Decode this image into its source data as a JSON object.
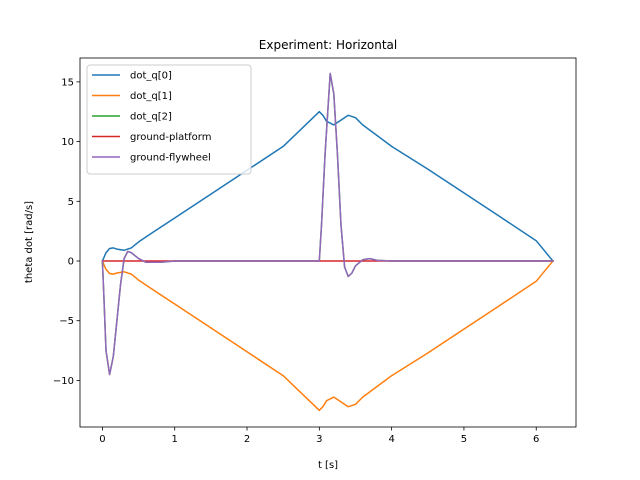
{
  "chart_data": {
    "type": "line",
    "title": "Experiment: Horizontal",
    "xlabel": "t [s]",
    "ylabel": "theta dot [rad/s]",
    "xlim": [
      -0.31,
      6.55
    ],
    "ylim": [
      -13.9,
      17.0
    ],
    "x_ticks": [
      0,
      1,
      2,
      3,
      4,
      5,
      6
    ],
    "y_ticks": [
      -10,
      -5,
      0,
      5,
      10,
      15
    ],
    "grid": false,
    "legend_position": "top-left",
    "series": [
      {
        "name": "dot_q[0]",
        "color": "#1f77b4",
        "points": [
          [
            0,
            0
          ],
          [
            0.05,
            0.7
          ],
          [
            0.1,
            1.05
          ],
          [
            0.15,
            1.1
          ],
          [
            0.2,
            1.0
          ],
          [
            0.3,
            0.9
          ],
          [
            0.4,
            1.1
          ],
          [
            0.5,
            1.6
          ],
          [
            0.7,
            2.4
          ],
          [
            1.0,
            3.6
          ],
          [
            1.5,
            5.6
          ],
          [
            2.0,
            7.6
          ],
          [
            2.5,
            9.6
          ],
          [
            3.0,
            12.5
          ],
          [
            3.05,
            12.2
          ],
          [
            3.1,
            11.7
          ],
          [
            3.2,
            11.4
          ],
          [
            3.3,
            11.8
          ],
          [
            3.4,
            12.2
          ],
          [
            3.5,
            12.0
          ],
          [
            3.6,
            11.4
          ],
          [
            3.8,
            10.5
          ],
          [
            4.0,
            9.6
          ],
          [
            4.5,
            7.7
          ],
          [
            5.0,
            5.7
          ],
          [
            5.5,
            3.7
          ],
          [
            6.0,
            1.7
          ],
          [
            6.23,
            0
          ]
        ]
      },
      {
        "name": "dot_q[1]",
        "color": "#ff7f0e",
        "points": [
          [
            0,
            0
          ],
          [
            0.05,
            -0.7
          ],
          [
            0.1,
            -1.05
          ],
          [
            0.15,
            -1.1
          ],
          [
            0.2,
            -1.0
          ],
          [
            0.3,
            -0.9
          ],
          [
            0.4,
            -1.1
          ],
          [
            0.5,
            -1.6
          ],
          [
            0.7,
            -2.4
          ],
          [
            1.0,
            -3.6
          ],
          [
            1.5,
            -5.6
          ],
          [
            2.0,
            -7.6
          ],
          [
            2.5,
            -9.6
          ],
          [
            3.0,
            -12.5
          ],
          [
            3.05,
            -12.2
          ],
          [
            3.1,
            -11.7
          ],
          [
            3.2,
            -11.4
          ],
          [
            3.3,
            -11.8
          ],
          [
            3.4,
            -12.2
          ],
          [
            3.5,
            -12.0
          ],
          [
            3.6,
            -11.4
          ],
          [
            3.8,
            -10.5
          ],
          [
            4.0,
            -9.6
          ],
          [
            4.5,
            -7.7
          ],
          [
            5.0,
            -5.7
          ],
          [
            5.5,
            -3.7
          ],
          [
            6.0,
            -1.7
          ],
          [
            6.23,
            0
          ]
        ]
      },
      {
        "name": "dot_q[2]",
        "color": "#2ca02c",
        "points": [
          [
            0,
            0
          ],
          [
            0.02,
            -3.0
          ],
          [
            0.05,
            -7.5
          ],
          [
            0.1,
            -9.5
          ],
          [
            0.15,
            -8.0
          ],
          [
            0.2,
            -5.0
          ],
          [
            0.25,
            -2.0
          ],
          [
            0.3,
            0.2
          ],
          [
            0.35,
            0.8
          ],
          [
            0.4,
            0.7
          ],
          [
            0.5,
            0.2
          ],
          [
            0.6,
            -0.1
          ],
          [
            0.8,
            -0.1
          ],
          [
            1.0,
            0
          ],
          [
            3.0,
            0
          ],
          [
            3.03,
            3.0
          ],
          [
            3.08,
            9.0
          ],
          [
            3.15,
            15.7
          ],
          [
            3.2,
            14.0
          ],
          [
            3.25,
            9.0
          ],
          [
            3.3,
            3.0
          ],
          [
            3.35,
            -0.5
          ],
          [
            3.4,
            -1.3
          ],
          [
            3.45,
            -1.0
          ],
          [
            3.5,
            -0.4
          ],
          [
            3.6,
            0.1
          ],
          [
            3.7,
            0.2
          ],
          [
            3.8,
            0.05
          ],
          [
            4.0,
            0
          ],
          [
            6.23,
            0
          ]
        ]
      },
      {
        "name": "ground-platform",
        "color": "#d62728",
        "points": [
          [
            0,
            0
          ],
          [
            6.23,
            0
          ]
        ]
      },
      {
        "name": "ground-flywheel",
        "color": "#9467bd",
        "points": [
          [
            0,
            0
          ],
          [
            0.02,
            -3.0
          ],
          [
            0.05,
            -7.5
          ],
          [
            0.1,
            -9.5
          ],
          [
            0.15,
            -8.0
          ],
          [
            0.2,
            -5.0
          ],
          [
            0.25,
            -2.0
          ],
          [
            0.3,
            0.2
          ],
          [
            0.35,
            0.8
          ],
          [
            0.4,
            0.7
          ],
          [
            0.5,
            0.2
          ],
          [
            0.6,
            -0.1
          ],
          [
            0.8,
            -0.1
          ],
          [
            1.0,
            0
          ],
          [
            3.0,
            0
          ],
          [
            3.03,
            3.0
          ],
          [
            3.08,
            9.0
          ],
          [
            3.15,
            15.7
          ],
          [
            3.2,
            14.0
          ],
          [
            3.25,
            9.0
          ],
          [
            3.3,
            3.0
          ],
          [
            3.35,
            -0.5
          ],
          [
            3.4,
            -1.3
          ],
          [
            3.45,
            -1.0
          ],
          [
            3.5,
            -0.4
          ],
          [
            3.6,
            0.1
          ],
          [
            3.7,
            0.2
          ],
          [
            3.8,
            0.05
          ],
          [
            4.0,
            0
          ],
          [
            6.23,
            0
          ]
        ]
      }
    ]
  }
}
